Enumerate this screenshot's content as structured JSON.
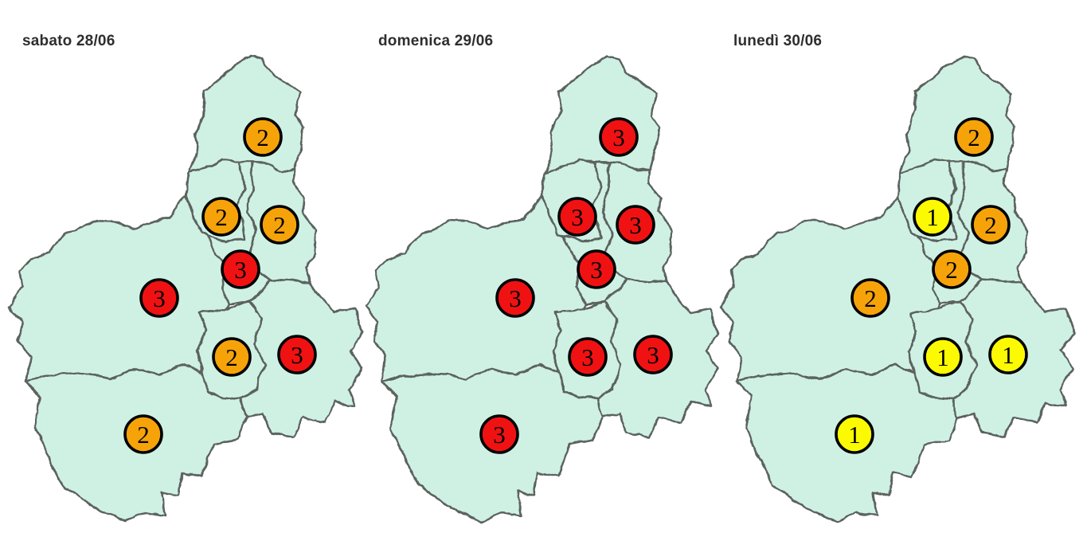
{
  "page": {
    "background": "#ffffff"
  },
  "map": {
    "land_color": "#cef1e3",
    "border_color": "#5c6260",
    "region": "outline of Piedmont with 8 province shapes"
  },
  "legend_levels": {
    "1": {
      "label": "1",
      "color": "#fcfa01"
    },
    "2": {
      "label": "2",
      "color": "#f6a30a"
    },
    "3": {
      "label": "3",
      "color": "#f01212"
    }
  },
  "marker_outline_color": "#000000",
  "panels": [
    {
      "title": "sabato 28/06",
      "values": [
        2,
        2,
        2,
        3,
        3,
        2,
        3,
        2
      ]
    },
    {
      "title": "domenica 29/06",
      "values": [
        3,
        3,
        3,
        3,
        3,
        3,
        3,
        3
      ]
    },
    {
      "title": "lunedì 30/06",
      "values": [
        2,
        1,
        2,
        2,
        2,
        1,
        1,
        1
      ]
    }
  ]
}
